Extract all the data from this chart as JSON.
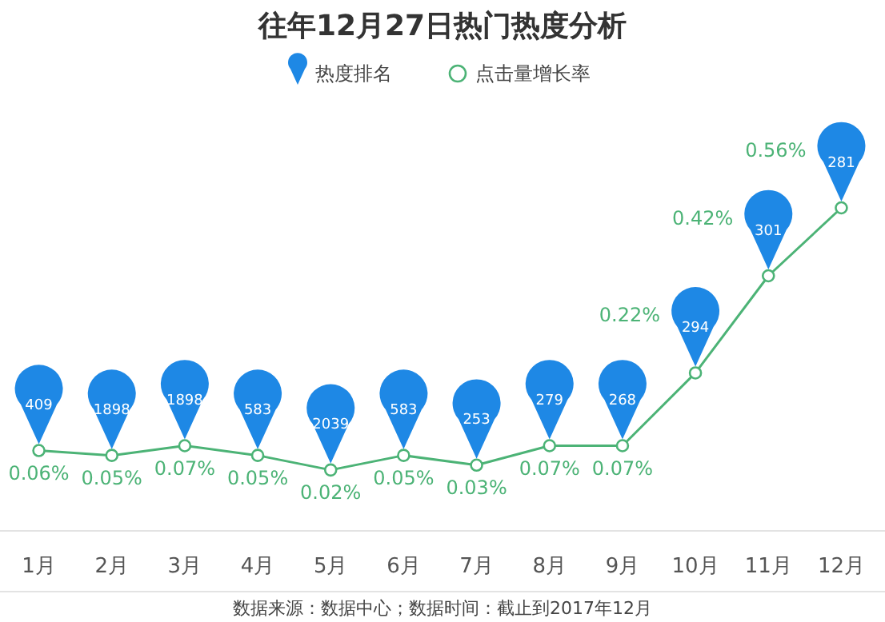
{
  "chart_data": {
    "type": "line",
    "title": "往年12月27日热门热度分析",
    "categories": [
      "1月",
      "2月",
      "3月",
      "4月",
      "5月",
      "6月",
      "7月",
      "8月",
      "9月",
      "10月",
      "11月",
      "12月"
    ],
    "series": [
      {
        "name": "点击量增长率",
        "color": "#4cb376",
        "values": [
          0.06,
          0.05,
          0.07,
          0.05,
          0.02,
          0.05,
          0.03,
          0.07,
          0.07,
          0.22,
          0.42,
          0.56
        ],
        "value_labels": [
          "0.06%",
          "0.05%",
          "0.07%",
          "0.05%",
          "0.02%",
          "0.05%",
          "0.03%",
          "0.07%",
          "0.07%",
          "0.22%",
          "0.42%",
          "0.56%"
        ]
      }
    ],
    "marker": "circle",
    "legend": "top",
    "annotations": [
      "热度排名",
      {
        "text": "409",
        "x": "1月",
        "y": 0.06
      },
      {
        "text": "1898",
        "x": "2月",
        "y": 0.05
      },
      {
        "text": "1898",
        "x": "3月",
        "y": 0.07
      },
      {
        "text": "583",
        "x": "4月",
        "y": 0.05
      },
      {
        "text": "2039",
        "x": "5月",
        "y": 0.02
      },
      {
        "text": "583",
        "x": "6月",
        "y": 0.05
      },
      {
        "text": "253",
        "x": "7月",
        "y": 0.03
      },
      {
        "text": "279",
        "x": "8月",
        "y": 0.07
      },
      {
        "text": "268",
        "x": "9月",
        "y": 0.07
      },
      {
        "text": "294",
        "x": "10月",
        "y": 0.22
      },
      {
        "text": "301",
        "x": "11月",
        "y": 0.42
      },
      {
        "text": "281",
        "x": "12月",
        "y": 0.56
      },
      "数据来源：数据中心；数据时间：截止到2017年12月"
    ]
  }
}
